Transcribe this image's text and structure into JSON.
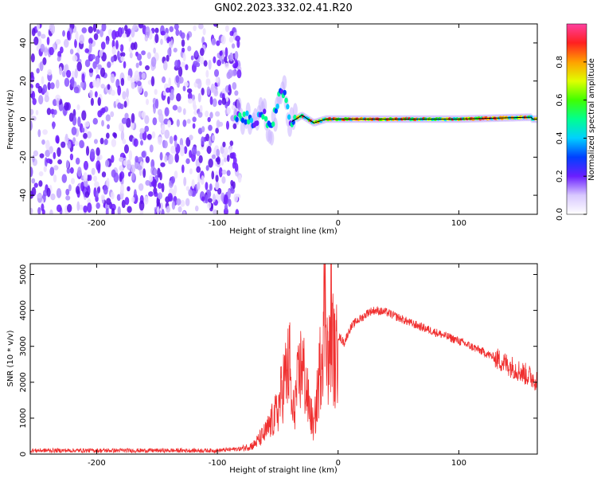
{
  "title": "GN02.2023.332.02.41.R20",
  "chart_data": [
    {
      "type": "heatmap",
      "xlabel": "Height of straight line (km)",
      "ylabel": "Frequency (Hz)",
      "xlim": [
        -255,
        165
      ],
      "ylim": [
        -50,
        50
      ],
      "x_ticks": [
        -200,
        -100,
        0,
        100
      ],
      "y_ticks": [
        -40,
        -20,
        0,
        20,
        40
      ],
      "grid": false,
      "noise_region_x": [
        -255,
        -85
      ],
      "signal_ridge": [
        {
          "x": -85,
          "y": 0
        },
        {
          "x": -78,
          "y": 2
        },
        {
          "x": -70,
          "y": -4
        },
        {
          "x": -62,
          "y": 3
        },
        {
          "x": -55,
          "y": -5
        },
        {
          "x": -50,
          "y": 10
        },
        {
          "x": -45,
          "y": 15
        },
        {
          "x": -40,
          "y": -2
        },
        {
          "x": -30,
          "y": 2
        },
        {
          "x": -20,
          "y": -2
        },
        {
          "x": -10,
          "y": 0
        },
        {
          "x": 0,
          "y": 0
        },
        {
          "x": 50,
          "y": 0
        },
        {
          "x": 100,
          "y": 0
        },
        {
          "x": 160,
          "y": 1
        }
      ],
      "colorbar": {
        "label": "Normalized spectral amplitude",
        "range": [
          0,
          1
        ],
        "ticks": [
          "0.0",
          "0.2",
          "0.4",
          "0.6",
          "0.8"
        ]
      }
    },
    {
      "type": "line",
      "xlabel": "Height of straight line (km)",
      "ylabel": "SNR (10 * v/v)",
      "xlim": [
        -255,
        165
      ],
      "ylim": [
        0,
        5300
      ],
      "x_ticks": [
        -200,
        -100,
        0,
        100
      ],
      "y_ticks": [
        0,
        1000,
        2000,
        3000,
        4000,
        5000
      ],
      "grid": false,
      "color": "#f03030",
      "series": [
        {
          "x": [
            -255,
            -150,
            -100,
            -80,
            -70,
            -60,
            -50,
            -45,
            -40,
            -38,
            -35,
            -30,
            -25,
            -20,
            -15,
            -12,
            -10,
            -8,
            -6,
            -4,
            -2,
            0,
            5,
            10,
            15,
            20,
            25,
            30,
            40,
            50,
            60,
            80,
            100,
            120,
            140,
            165
          ],
          "y": [
            100,
            100,
            100,
            150,
            250,
            600,
            1200,
            2000,
            2500,
            1000,
            1600,
            2600,
            1500,
            700,
            2400,
            3800,
            4600,
            2000,
            3800,
            3000,
            2400,
            3300,
            3100,
            3500,
            3700,
            3800,
            3950,
            4000,
            3950,
            3800,
            3650,
            3400,
            3150,
            2850,
            2500,
            2050
          ]
        }
      ]
    }
  ]
}
